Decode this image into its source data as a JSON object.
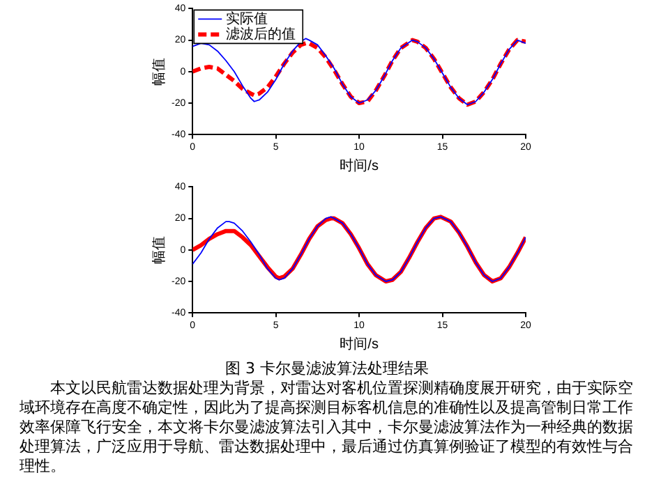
{
  "chart_data": [
    {
      "type": "line",
      "xlabel": "时间/s",
      "ylabel": "幅值",
      "xlim": [
        0,
        20
      ],
      "ylim": [
        -40,
        40
      ],
      "xticks": [
        0,
        5,
        10,
        15,
        20
      ],
      "yticks": [
        -40,
        -20,
        0,
        20,
        40
      ],
      "grid": false,
      "legend": "top left",
      "marker": "none",
      "series": [
        {
          "name": "实际值",
          "color": "#0000ff",
          "line_style": "solid",
          "x": [
            0,
            0.5,
            1,
            1.5,
            2,
            2.5,
            3,
            3.5,
            3.7,
            4,
            4.5,
            5,
            5.5,
            6,
            6.5,
            6.8,
            7,
            7.5,
            8,
            8.5,
            9,
            9.5,
            10,
            10.5,
            11,
            11.5,
            12,
            12.5,
            13.2,
            13.5,
            14,
            14.5,
            15,
            15.5,
            16,
            16.5,
            17,
            17.5,
            18,
            18.5,
            19,
            19.5,
            20
          ],
          "values": [
            16,
            18,
            17,
            13,
            7,
            0,
            -9,
            -17,
            -19,
            -18,
            -13,
            -5,
            5,
            13,
            19,
            21,
            20,
            17,
            10,
            2,
            -8,
            -16,
            -20,
            -18,
            -12,
            -3,
            7,
            15,
            20,
            19,
            15,
            8,
            -1,
            -10,
            -17,
            -21,
            -19,
            -13,
            -5,
            5,
            14,
            20,
            18
          ]
        },
        {
          "name": "滤波后的值",
          "color": "#ff0000",
          "line_style": "dashed",
          "x": [
            0,
            0.5,
            1,
            1.5,
            2,
            2.5,
            3,
            3.5,
            3.7,
            4,
            4.5,
            5,
            5.5,
            6,
            6.5,
            6.8,
            7,
            7.5,
            8,
            8.5,
            9,
            9.5,
            10,
            10.5,
            11,
            11.5,
            12,
            12.5,
            13.2,
            13.5,
            14,
            14.5,
            15,
            15.5,
            16,
            16.5,
            17,
            17.5,
            18,
            18.5,
            19,
            19.5,
            20
          ],
          "values": [
            0,
            2,
            3,
            2,
            -2,
            -6,
            -11,
            -14,
            -15,
            -14,
            -10,
            -3,
            5,
            12,
            17,
            18,
            18,
            15,
            9,
            1,
            -8,
            -16,
            -20,
            -19,
            -12,
            -3,
            7,
            15,
            20,
            19,
            15,
            8,
            -1,
            -10,
            -17,
            -21,
            -19,
            -13,
            -5,
            5,
            14,
            20,
            19
          ]
        }
      ]
    },
    {
      "type": "line",
      "xlabel": "时间/s",
      "ylabel": "幅值",
      "xlim": [
        0,
        20
      ],
      "ylim": [
        -40,
        40
      ],
      "xticks": [
        0,
        5,
        10,
        15,
        20
      ],
      "yticks": [
        -40,
        -20,
        0,
        20,
        40
      ],
      "grid": false,
      "legend": false,
      "marker": "none",
      "series": [
        {
          "color": "#0000ff",
          "line_style": "solid",
          "x": [
            0,
            0.5,
            1,
            1.5,
            2,
            2.2,
            2.5,
            3,
            3.5,
            4,
            4.5,
            5,
            5.2,
            5.5,
            6,
            6.5,
            7,
            7.5,
            8,
            8.3,
            8.5,
            9,
            9.5,
            10,
            10.5,
            11,
            11.6,
            12,
            12.5,
            13,
            13.5,
            14,
            14.5,
            14.9,
            15.5,
            16,
            16.5,
            17,
            17.5,
            18,
            18.5,
            19,
            19.5,
            20
          ],
          "values": [
            -9,
            -2,
            7,
            14,
            18,
            18,
            17,
            12,
            5,
            -3,
            -12,
            -18,
            -19,
            -18,
            -12,
            -3,
            7,
            15,
            20,
            21,
            20,
            17,
            10,
            1,
            -9,
            -16,
            -20,
            -19,
            -14,
            -5,
            5,
            14,
            20,
            21,
            18,
            11,
            2,
            -8,
            -16,
            -20,
            -18,
            -11,
            -2,
            8
          ]
        },
        {
          "color": "#ff0000",
          "line_style": "solid",
          "x": [
            0,
            0.5,
            1,
            1.5,
            2,
            2.2,
            2.5,
            3,
            3.5,
            4,
            4.5,
            5,
            5.2,
            5.5,
            6,
            6.5,
            7,
            7.5,
            8,
            8.3,
            8.5,
            9,
            9.5,
            10,
            10.5,
            11,
            11.6,
            12,
            12.5,
            13,
            13.5,
            14,
            14.5,
            14.9,
            15.5,
            16,
            16.5,
            17,
            17.5,
            18,
            18.5,
            19,
            19.5,
            20
          ],
          "values": [
            0,
            3,
            7,
            10,
            12,
            12,
            12,
            8,
            3,
            -4,
            -11,
            -17,
            -18,
            -17,
            -12,
            -3,
            7,
            15,
            19,
            20,
            20,
            17,
            10,
            1,
            -9,
            -16,
            -20,
            -19,
            -14,
            -5,
            5,
            14,
            20,
            21,
            18,
            11,
            2,
            -8,
            -16,
            -20,
            -18,
            -11,
            -2,
            8
          ]
        }
      ],
      "annotations": [
        "图 3 卡尔曼滤波算法处理结果",
        "本文以民航雷达数据处理为背景，对雷达对客机位置探测精确度展开研究，由于实际空域环境存在高度不确定性，因此为了提高探测目标客机信息的准确性以及提高管制日常工作效率保障飞行安全，本文将卡尔曼滤波算法引入其中，卡尔曼滤波算法作为一种经典的数据处理算法，广泛应用于导航、雷达数据处理中，最后通过仿真算例验证了模型的有效性与合理性。"
      ]
    }
  ]
}
